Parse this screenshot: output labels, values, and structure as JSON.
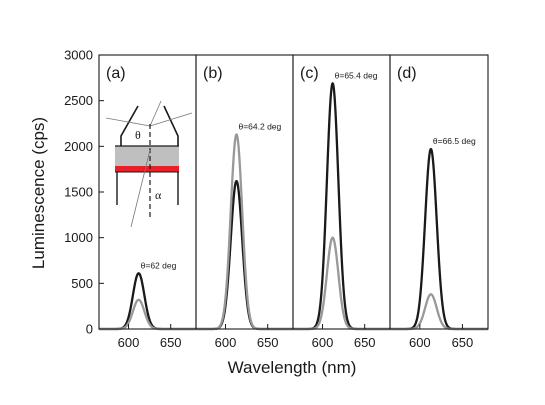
{
  "chart_data": {
    "type": "line",
    "xlabel": "Wavelength (nm)",
    "ylabel": "Luminescence (cps)",
    "ylim": [
      0,
      3000
    ],
    "xlim": [
      565,
      680
    ],
    "y_ticks": [
      "0",
      "500",
      "1000",
      "1500",
      "2000",
      "2500",
      "3000"
    ],
    "x_ticks": [
      "600",
      "650"
    ],
    "x_tick_values": [
      600,
      650
    ],
    "y_tick_values": [
      0,
      500,
      1000,
      1500,
      2000,
      2500,
      3000
    ],
    "grid": false,
    "colors": {
      "black_series": "#1a1a1a",
      "gray_series": "#999999",
      "inset_layer": "#bfbfbf",
      "inset_red": "#e8202a"
    },
    "panels": [
      {
        "label": "(a)",
        "annotation": "θ=62 deg",
        "series": [
          {
            "color": "black",
            "peak_wavelength": 612,
            "peak": 610,
            "width_nm": 16
          },
          {
            "color": "gray",
            "peak_wavelength": 612,
            "peak": 320,
            "width_nm": 16
          }
        ],
        "inset": {
          "theta": "θ",
          "alpha": "α"
        }
      },
      {
        "label": "(b)",
        "annotation": "θ=64.2 deg",
        "series": [
          {
            "color": "black",
            "peak_wavelength": 613,
            "peak": 1620,
            "width_nm": 16
          },
          {
            "color": "gray",
            "peak_wavelength": 613,
            "peak": 2130,
            "width_nm": 16
          }
        ]
      },
      {
        "label": "(c)",
        "annotation": "θ=65.4 deg",
        "series": [
          {
            "color": "black",
            "peak_wavelength": 612,
            "peak": 2690,
            "width_nm": 16
          },
          {
            "color": "gray",
            "peak_wavelength": 612,
            "peak": 1000,
            "width_nm": 16
          }
        ]
      },
      {
        "label": "(d)",
        "annotation": "θ=66.5 deg",
        "series": [
          {
            "color": "black",
            "peak_wavelength": 613,
            "peak": 1970,
            "width_nm": 16
          },
          {
            "color": "gray",
            "peak_wavelength": 613,
            "peak": 380,
            "width_nm": 16
          }
        ]
      }
    ]
  }
}
